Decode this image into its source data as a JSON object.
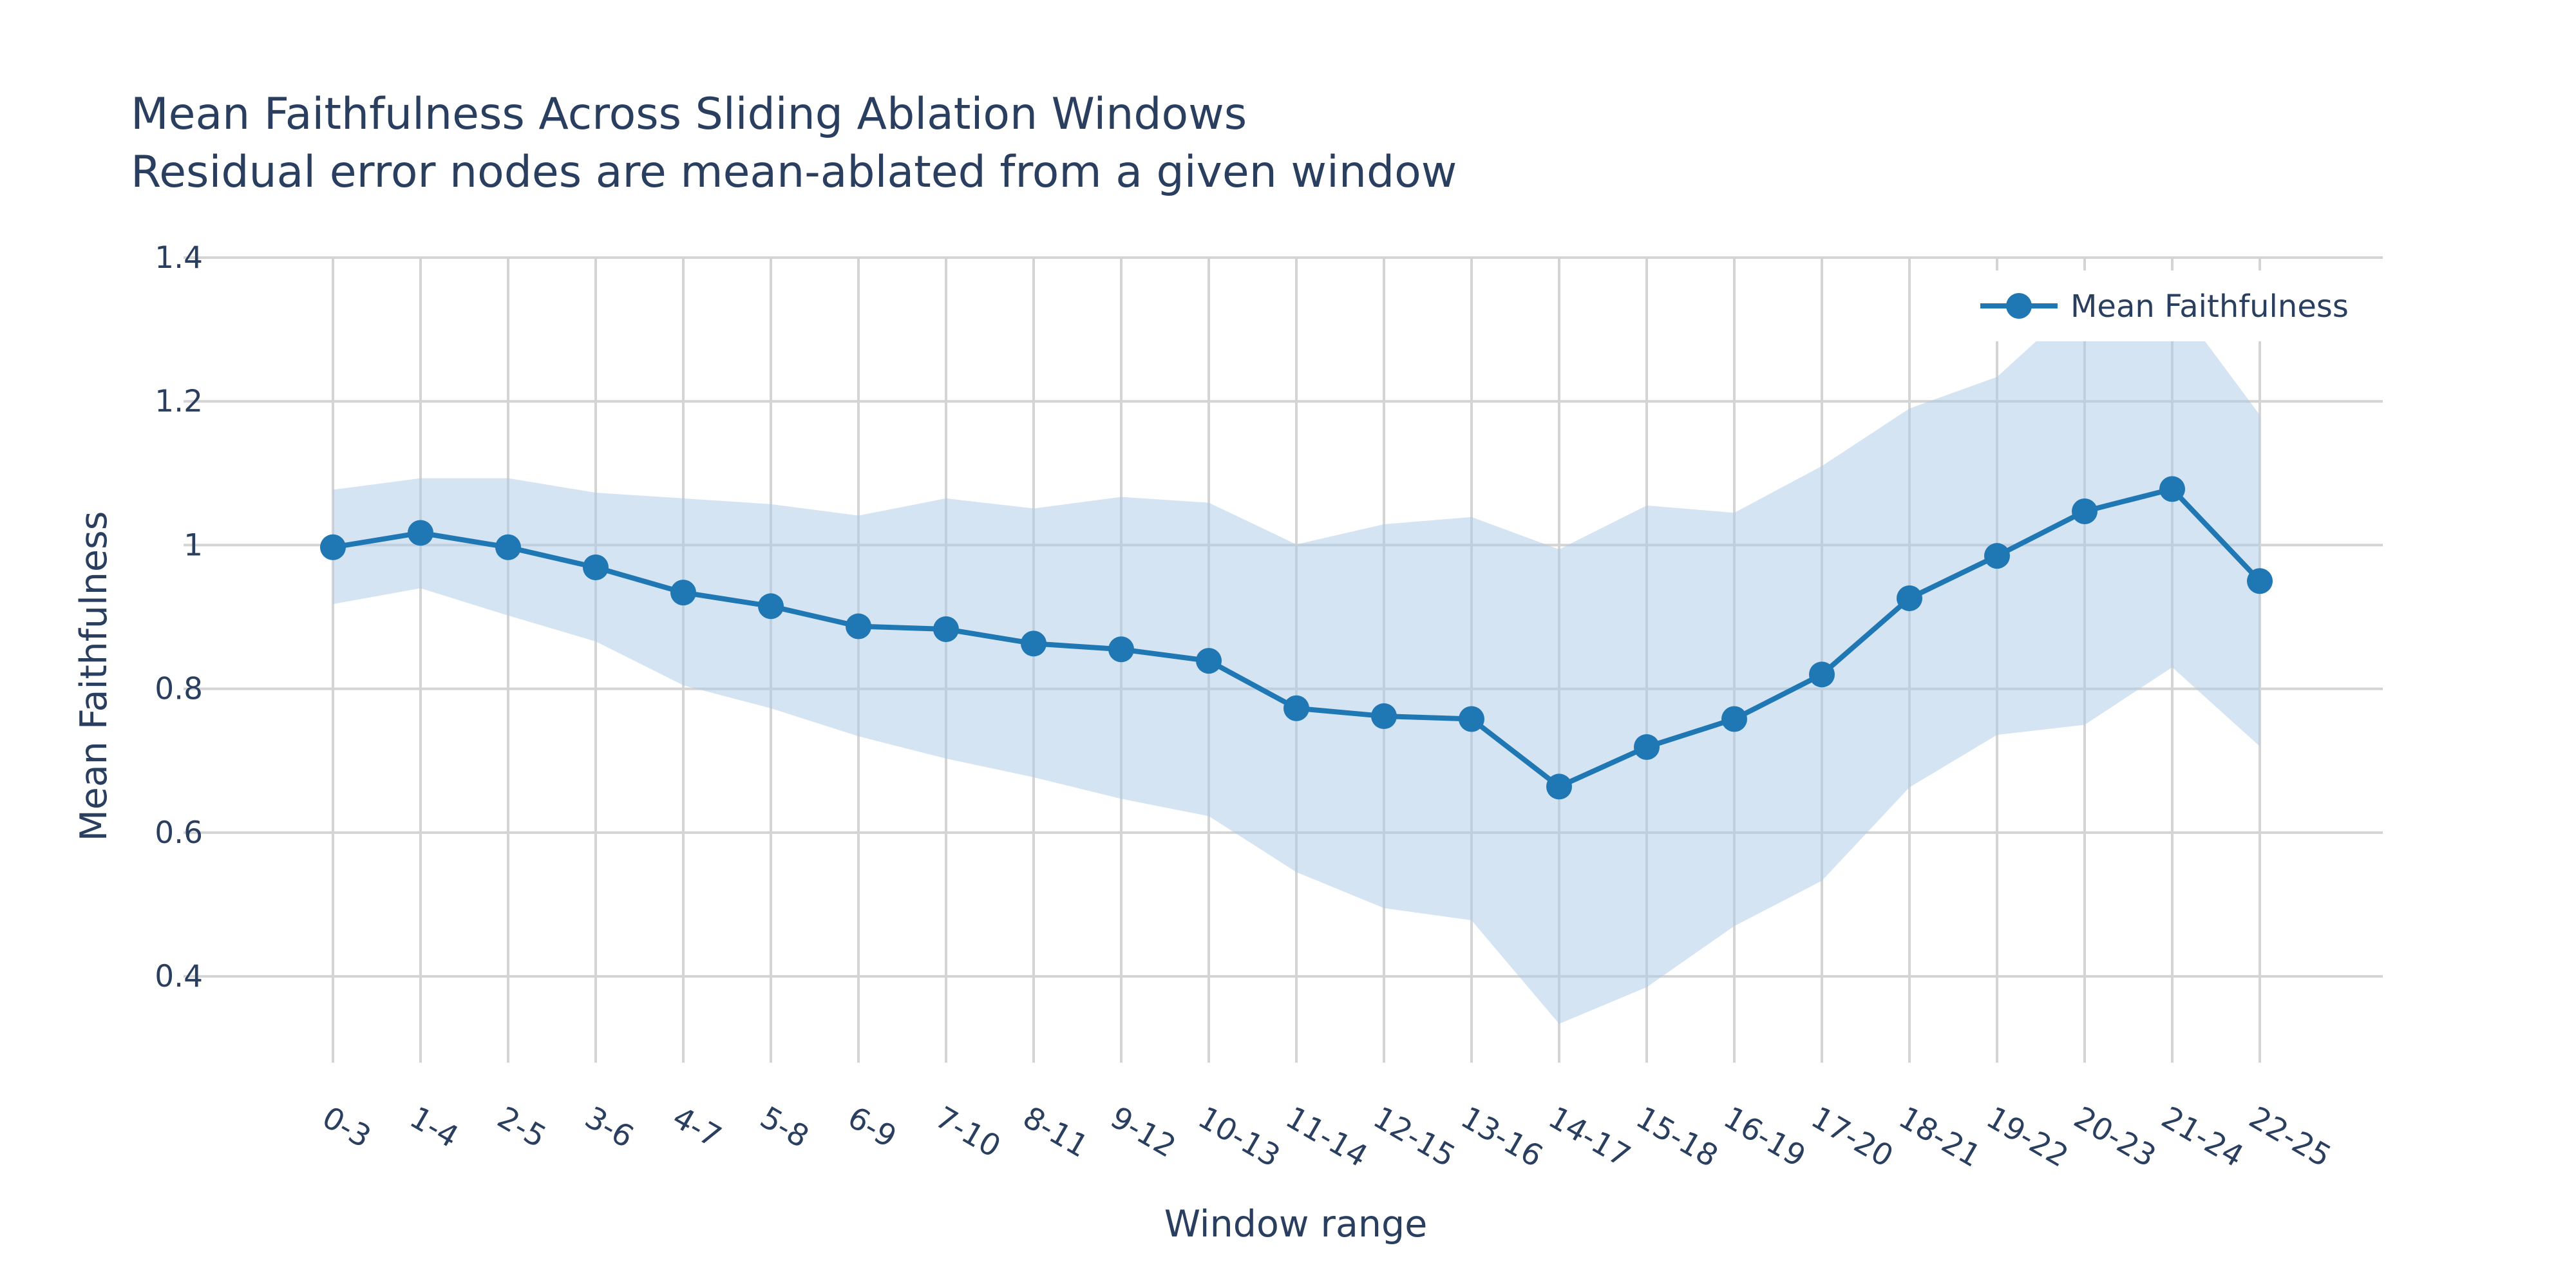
{
  "chart_data": {
    "type": "line",
    "title": "Mean Faithfulness Across Sliding Ablation Windows",
    "subtitle": "Residual error nodes are mean-ablated from a given window",
    "xlabel": "Window range",
    "ylabel": "Mean Faithfulness",
    "ylim": [
      0.28,
      1.4
    ],
    "yticks": [
      0.4,
      0.6,
      0.8,
      1.0,
      1.2,
      1.4
    ],
    "ytick_labels": [
      "0.4",
      "0.6",
      "0.8",
      "1",
      "1.2",
      "1.4"
    ],
    "grid": true,
    "legend_position": "top-right",
    "categories": [
      "0-3",
      "1-4",
      "2-5",
      "3-6",
      "4-7",
      "5-8",
      "6-9",
      "7-10",
      "8-11",
      "9-12",
      "10-13",
      "11-14",
      "12-15",
      "13-16",
      "14-17",
      "15-18",
      "16-19",
      "17-20",
      "18-21",
      "19-22",
      "20-23",
      "21-24",
      "22-25"
    ],
    "series": [
      {
        "name": "Mean Faithfulness",
        "color": "#1f77b4",
        "band_color": "#a9c9e6",
        "values": [
          0.997,
          1.017,
          0.997,
          0.969,
          0.934,
          0.915,
          0.887,
          0.883,
          0.863,
          0.855,
          0.839,
          0.773,
          0.762,
          0.758,
          0.664,
          0.719,
          0.758,
          0.82,
          0.926,
          0.985,
          1.047,
          1.078,
          0.95
        ],
        "upper": [
          1.077,
          1.093,
          1.093,
          1.073,
          1.065,
          1.057,
          1.041,
          1.065,
          1.051,
          1.067,
          1.059,
          1.001,
          1.029,
          1.039,
          0.994,
          1.055,
          1.045,
          1.11,
          1.19,
          1.234,
          1.345,
          1.345,
          1.181
        ],
        "lower": [
          0.918,
          0.94,
          0.902,
          0.866,
          0.805,
          0.773,
          0.734,
          0.703,
          0.677,
          0.647,
          0.623,
          0.545,
          0.495,
          0.478,
          0.334,
          0.385,
          0.47,
          0.533,
          0.663,
          0.736,
          0.75,
          0.83,
          0.72
        ]
      }
    ]
  }
}
